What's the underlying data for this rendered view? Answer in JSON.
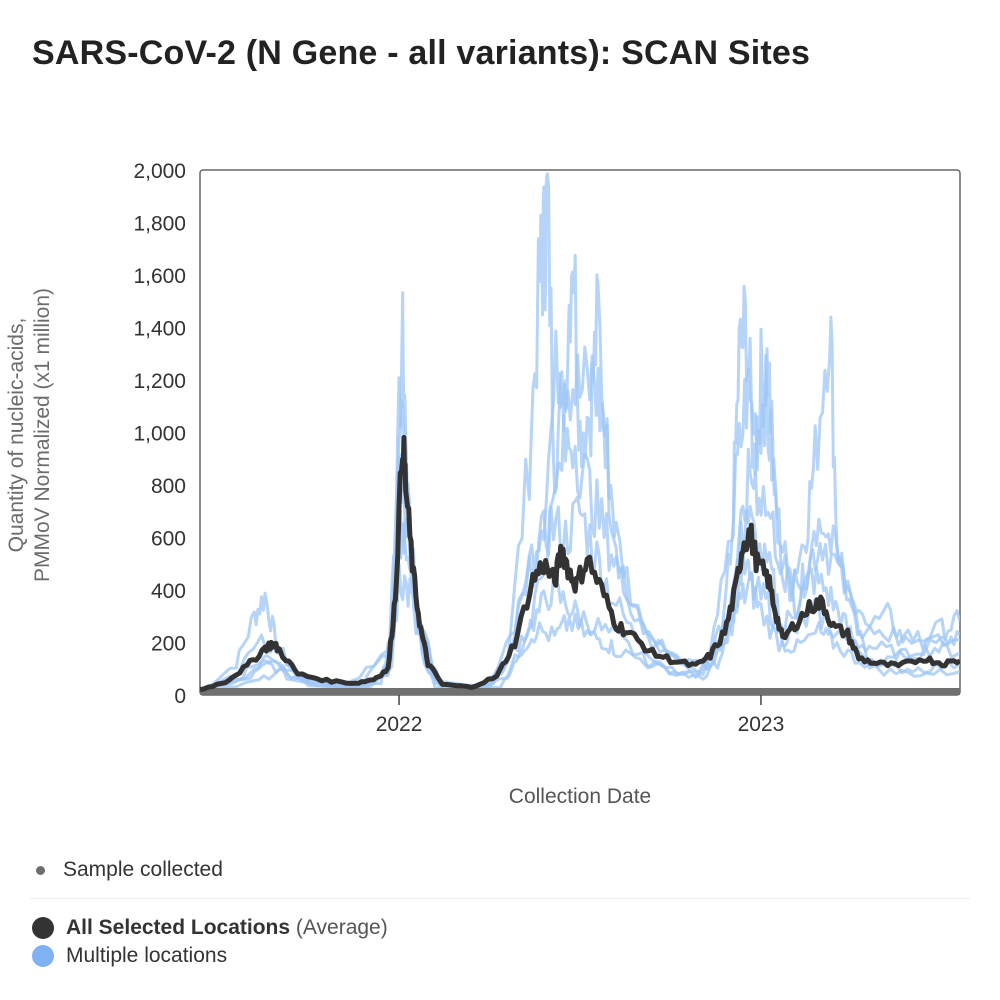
{
  "title": "SARS-CoV-2 (N Gene - all variants): SCAN Sites",
  "chart_data": {
    "type": "line",
    "title": "SARS-CoV-2 (N Gene - all variants): SCAN Sites",
    "xlabel": "Collection Date",
    "ylabel_line1": "Quantity of nucleic-acids,",
    "ylabel_line2": "PMMoV Normalized (x1 million)",
    "ylim": [
      0,
      2000
    ],
    "yticks": [
      "0",
      "200",
      "400",
      "600",
      "800",
      "1,000",
      "1,200",
      "1,400",
      "1,600",
      "1,800",
      "2,000"
    ],
    "xlim": [
      2021.45,
      2023.55
    ],
    "xticks": [
      {
        "value": 2022,
        "label": "2022"
      },
      {
        "value": 2023,
        "label": "2023"
      }
    ],
    "series": [
      {
        "name": "All Selected Locations",
        "style": "average",
        "points": [
          [
            2021.45,
            20
          ],
          [
            2021.52,
            50
          ],
          [
            2021.58,
            110
          ],
          [
            2021.63,
            180
          ],
          [
            2021.65,
            195
          ],
          [
            2021.67,
            170
          ],
          [
            2021.72,
            80
          ],
          [
            2021.8,
            55
          ],
          [
            2021.88,
            45
          ],
          [
            2021.93,
            60
          ],
          [
            2021.97,
            100
          ],
          [
            2021.99,
            380
          ],
          [
            2022.01,
            980
          ],
          [
            2022.02,
            760
          ],
          [
            2022.04,
            450
          ],
          [
            2022.06,
            250
          ],
          [
            2022.08,
            120
          ],
          [
            2022.12,
            40
          ],
          [
            2022.2,
            30
          ],
          [
            2022.27,
            70
          ],
          [
            2022.32,
            200
          ],
          [
            2022.37,
            440
          ],
          [
            2022.4,
            500
          ],
          [
            2022.43,
            430
          ],
          [
            2022.45,
            560
          ],
          [
            2022.47,
            470
          ],
          [
            2022.49,
            420
          ],
          [
            2022.52,
            520
          ],
          [
            2022.56,
            400
          ],
          [
            2022.6,
            270
          ],
          [
            2022.64,
            230
          ],
          [
            2022.7,
            160
          ],
          [
            2022.76,
            130
          ],
          [
            2022.82,
            110
          ],
          [
            2022.86,
            150
          ],
          [
            2022.9,
            240
          ],
          [
            2022.93,
            400
          ],
          [
            2022.95,
            580
          ],
          [
            2022.97,
            620
          ],
          [
            2022.99,
            500
          ],
          [
            2023.02,
            440
          ],
          [
            2023.04,
            320
          ],
          [
            2023.06,
            210
          ],
          [
            2023.1,
            280
          ],
          [
            2023.14,
            340
          ],
          [
            2023.17,
            350
          ],
          [
            2023.2,
            260
          ],
          [
            2023.24,
            230
          ],
          [
            2023.27,
            140
          ],
          [
            2023.32,
            120
          ],
          [
            2023.38,
            110
          ],
          [
            2023.45,
            140
          ],
          [
            2023.5,
            120
          ],
          [
            2023.55,
            130
          ]
        ]
      },
      {
        "name": "Multiple locations",
        "style": "location",
        "points": [
          [
            2021.45,
            10
          ],
          [
            2021.55,
            120
          ],
          [
            2021.6,
            300
          ],
          [
            2021.63,
            380
          ],
          [
            2021.66,
            200
          ],
          [
            2021.72,
            60
          ],
          [
            2021.85,
            30
          ],
          [
            2021.95,
            50
          ],
          [
            2021.99,
            300
          ],
          [
            2022.01,
            1560
          ],
          [
            2022.02,
            800
          ],
          [
            2022.05,
            300
          ],
          [
            2022.1,
            30
          ],
          [
            2022.22,
            20
          ],
          [
            2022.3,
            150
          ],
          [
            2022.36,
            900
          ],
          [
            2022.39,
            1600
          ],
          [
            2022.4,
            1700
          ],
          [
            2022.41,
            1880
          ],
          [
            2022.43,
            900
          ],
          [
            2022.46,
            1200
          ],
          [
            2022.48,
            1780
          ],
          [
            2022.5,
            1000
          ],
          [
            2022.53,
            1100
          ],
          [
            2022.55,
            1450
          ],
          [
            2022.58,
            800
          ],
          [
            2022.62,
            400
          ],
          [
            2022.7,
            200
          ],
          [
            2022.8,
            100
          ],
          [
            2022.86,
            150
          ],
          [
            2022.92,
            600
          ],
          [
            2022.94,
            1280
          ],
          [
            2022.96,
            1420
          ],
          [
            2022.98,
            900
          ],
          [
            2023.0,
            1200
          ],
          [
            2023.02,
            1260
          ],
          [
            2023.04,
            700
          ],
          [
            2023.08,
            420
          ],
          [
            2023.12,
            600
          ],
          [
            2023.15,
            900
          ],
          [
            2023.19,
            1480
          ],
          [
            2023.21,
            600
          ],
          [
            2023.25,
            300
          ],
          [
            2023.3,
            120
          ],
          [
            2023.4,
            150
          ],
          [
            2023.5,
            200
          ],
          [
            2023.55,
            230
          ]
        ]
      },
      {
        "name": "Multiple locations",
        "style": "location",
        "points": [
          [
            2021.45,
            15
          ],
          [
            2021.55,
            80
          ],
          [
            2021.62,
            220
          ],
          [
            2021.66,
            150
          ],
          [
            2021.75,
            50
          ],
          [
            2021.9,
            40
          ],
          [
            2021.98,
            200
          ],
          [
            2022.0,
            1180
          ],
          [
            2022.02,
            900
          ],
          [
            2022.05,
            350
          ],
          [
            2022.1,
            50
          ],
          [
            2022.22,
            25
          ],
          [
            2022.3,
            120
          ],
          [
            2022.36,
            500
          ],
          [
            2022.4,
            700
          ],
          [
            2022.44,
            1300
          ],
          [
            2022.46,
            1250
          ],
          [
            2022.5,
            1150
          ],
          [
            2022.54,
            1200
          ],
          [
            2022.57,
            1000
          ],
          [
            2022.6,
            600
          ],
          [
            2022.66,
            300
          ],
          [
            2022.75,
            150
          ],
          [
            2022.85,
            120
          ],
          [
            2022.9,
            300
          ],
          [
            2022.93,
            800
          ],
          [
            2022.96,
            1150
          ],
          [
            2022.99,
            1000
          ],
          [
            2023.01,
            1150
          ],
          [
            2023.03,
            900
          ],
          [
            2023.06,
            500
          ],
          [
            2023.1,
            350
          ],
          [
            2023.13,
            500
          ],
          [
            2023.17,
            600
          ],
          [
            2023.22,
            450
          ],
          [
            2023.28,
            250
          ],
          [
            2023.35,
            300
          ],
          [
            2023.4,
            200
          ],
          [
            2023.5,
            250
          ],
          [
            2023.55,
            280
          ]
        ]
      },
      {
        "name": "Multiple locations",
        "style": "location",
        "points": [
          [
            2021.45,
            5
          ],
          [
            2021.58,
            60
          ],
          [
            2021.64,
            120
          ],
          [
            2021.7,
            60
          ],
          [
            2021.85,
            20
          ],
          [
            2021.97,
            80
          ],
          [
            2022.0,
            700
          ],
          [
            2022.02,
            600
          ],
          [
            2022.06,
            200
          ],
          [
            2022.12,
            20
          ],
          [
            2022.25,
            30
          ],
          [
            2022.32,
            250
          ],
          [
            2022.38,
            550
          ],
          [
            2022.42,
            650
          ],
          [
            2022.46,
            600
          ],
          [
            2022.5,
            700
          ],
          [
            2022.54,
            550
          ],
          [
            2022.58,
            400
          ],
          [
            2022.64,
            250
          ],
          [
            2022.72,
            120
          ],
          [
            2022.82,
            70
          ],
          [
            2022.88,
            150
          ],
          [
            2022.93,
            450
          ],
          [
            2022.96,
            700
          ],
          [
            2022.99,
            550
          ],
          [
            2023.03,
            450
          ],
          [
            2023.06,
            250
          ],
          [
            2023.1,
            350
          ],
          [
            2023.14,
            450
          ],
          [
            2023.18,
            400
          ],
          [
            2023.22,
            300
          ],
          [
            2023.26,
            200
          ],
          [
            2023.32,
            180
          ],
          [
            2023.4,
            150
          ],
          [
            2023.48,
            180
          ],
          [
            2023.55,
            160
          ]
        ]
      },
      {
        "name": "Multiple locations",
        "style": "location",
        "points": [
          [
            2021.45,
            8
          ],
          [
            2021.6,
            90
          ],
          [
            2021.64,
            160
          ],
          [
            2021.7,
            80
          ],
          [
            2021.85,
            30
          ],
          [
            2021.97,
            150
          ],
          [
            2022.0,
            850
          ],
          [
            2022.02,
            700
          ],
          [
            2022.06,
            250
          ],
          [
            2022.12,
            30
          ],
          [
            2022.26,
            40
          ],
          [
            2022.33,
            200
          ],
          [
            2022.38,
            300
          ],
          [
            2022.42,
            400
          ],
          [
            2022.46,
            350
          ],
          [
            2022.5,
            300
          ],
          [
            2022.56,
            250
          ],
          [
            2022.62,
            200
          ],
          [
            2022.7,
            110
          ],
          [
            2022.8,
            80
          ],
          [
            2022.88,
            120
          ],
          [
            2022.92,
            300
          ],
          [
            2022.95,
            500
          ],
          [
            2022.98,
            400
          ],
          [
            2023.02,
            350
          ],
          [
            2023.06,
            220
          ],
          [
            2023.1,
            250
          ],
          [
            2023.15,
            320
          ],
          [
            2023.2,
            250
          ],
          [
            2023.28,
            160
          ],
          [
            2023.36,
            100
          ],
          [
            2023.45,
            100
          ],
          [
            2023.55,
            120
          ]
        ]
      },
      {
        "name": "Multiple locations",
        "style": "location",
        "points": [
          [
            2021.45,
            3
          ],
          [
            2021.6,
            50
          ],
          [
            2021.68,
            90
          ],
          [
            2021.75,
            40
          ],
          [
            2021.9,
            25
          ],
          [
            2021.98,
            100
          ],
          [
            2022.0,
            600
          ],
          [
            2022.03,
            500
          ],
          [
            2022.07,
            120
          ],
          [
            2022.14,
            15
          ],
          [
            2022.28,
            35
          ],
          [
            2022.34,
            180
          ],
          [
            2022.38,
            250
          ],
          [
            2022.43,
            220
          ],
          [
            2022.47,
            280
          ],
          [
            2022.52,
            230
          ],
          [
            2022.56,
            210
          ],
          [
            2022.6,
            170
          ],
          [
            2022.68,
            130
          ],
          [
            2022.76,
            90
          ],
          [
            2022.84,
            60
          ],
          [
            2022.9,
            200
          ],
          [
            2022.94,
            350
          ],
          [
            2022.97,
            420
          ],
          [
            2023.0,
            320
          ],
          [
            2023.05,
            200
          ],
          [
            2023.1,
            180
          ],
          [
            2023.16,
            240
          ],
          [
            2023.2,
            200
          ],
          [
            2023.26,
            140
          ],
          [
            2023.34,
            90
          ],
          [
            2023.44,
            80
          ],
          [
            2023.55,
            90
          ]
        ]
      },
      {
        "name": "Multiple locations",
        "style": "location",
        "points": [
          [
            2021.45,
            12
          ],
          [
            2021.56,
            70
          ],
          [
            2021.62,
            140
          ],
          [
            2021.68,
            110
          ],
          [
            2021.78,
            45
          ],
          [
            2021.92,
            35
          ],
          [
            2021.98,
            120
          ],
          [
            2022.0,
            450
          ],
          [
            2022.03,
            380
          ],
          [
            2022.08,
            90
          ],
          [
            2022.16,
            20
          ],
          [
            2022.3,
            60
          ],
          [
            2022.35,
            220
          ],
          [
            2022.4,
            500
          ],
          [
            2022.45,
            900
          ],
          [
            2022.48,
            1000
          ],
          [
            2022.52,
            800
          ],
          [
            2022.56,
            650
          ],
          [
            2022.6,
            500
          ],
          [
            2022.66,
            300
          ],
          [
            2022.74,
            160
          ],
          [
            2022.84,
            90
          ],
          [
            2022.9,
            250
          ],
          [
            2022.94,
            550
          ],
          [
            2022.97,
            850
          ],
          [
            2023.0,
            780
          ],
          [
            2023.04,
            600
          ],
          [
            2023.08,
            400
          ],
          [
            2023.12,
            420
          ],
          [
            2023.16,
            700
          ],
          [
            2023.2,
            550
          ],
          [
            2023.24,
            400
          ],
          [
            2023.3,
            260
          ],
          [
            2023.38,
            220
          ],
          [
            2023.46,
            200
          ],
          [
            2023.55,
            210
          ]
        ]
      }
    ],
    "sample_collected": "Sample collected"
  },
  "legend": {
    "sample_label": "Sample collected",
    "average_name": "All Selected Locations",
    "average_suffix": "(Average)",
    "locations_label": "Multiple locations"
  },
  "colors": {
    "average": "#333333",
    "locations": "#9ec5f5",
    "locations_dot": "#7fb1f3",
    "samples": "#707070",
    "frame": "#666666"
  }
}
